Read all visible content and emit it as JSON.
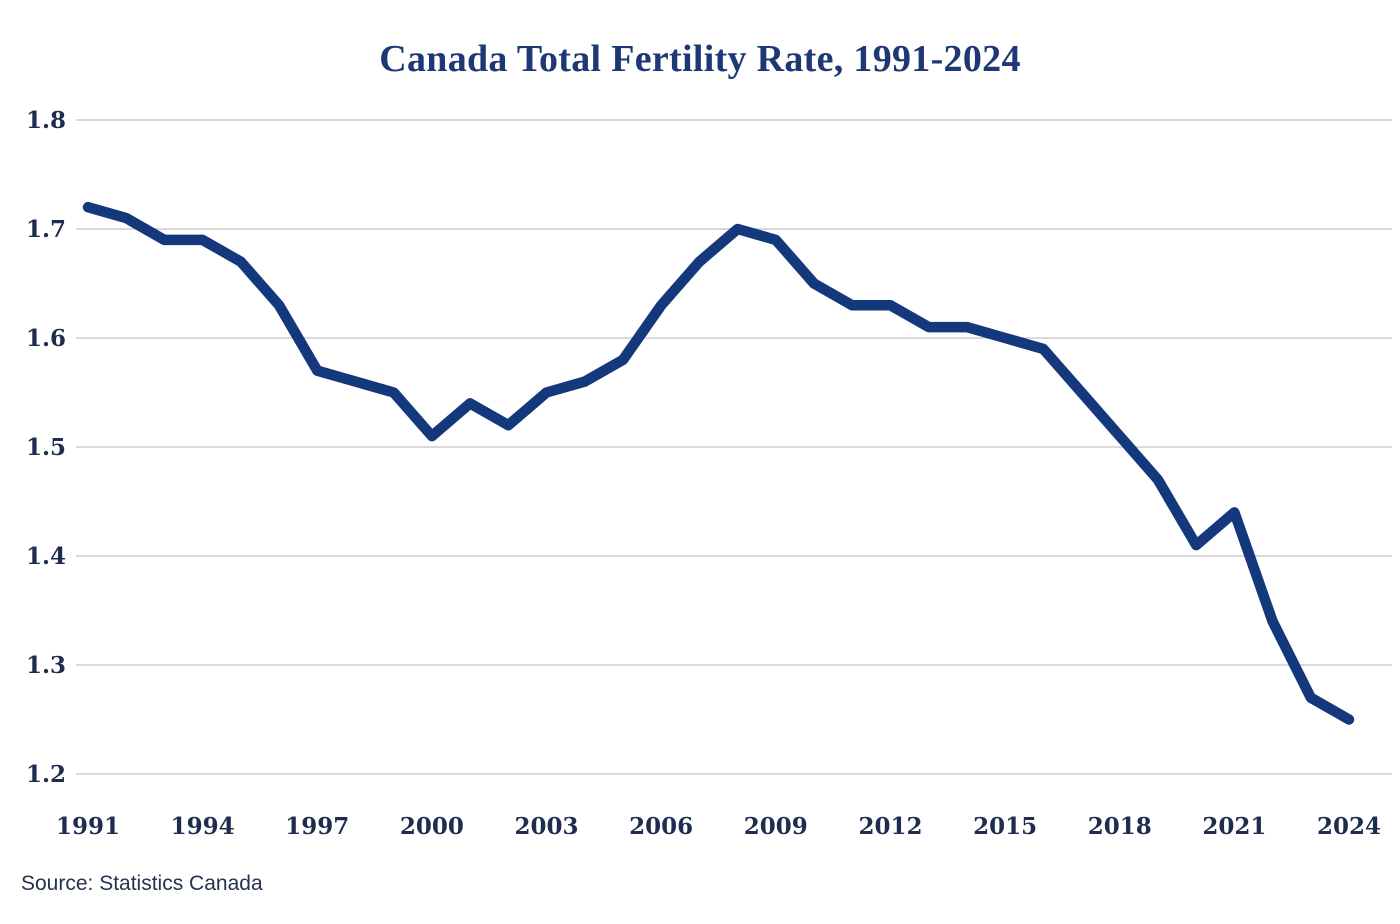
{
  "title": "Canada Total Fertility Rate, 1991-2024",
  "source": "Source: Statistics Canada",
  "colors": {
    "title_text": "#1e3876",
    "tick_text": "#1e2c4f",
    "source_text": "#25334f",
    "line": "#14387c",
    "grid": "#d9d9d9",
    "background": "#ffffff"
  },
  "chart_data": {
    "type": "line",
    "title": "Canada Total Fertility Rate, 1991-2024",
    "xlabel": "",
    "ylabel": "",
    "x": [
      1991,
      1992,
      1993,
      1994,
      1995,
      1996,
      1997,
      1998,
      1999,
      2000,
      2001,
      2002,
      2003,
      2004,
      2005,
      2006,
      2007,
      2008,
      2009,
      2010,
      2011,
      2012,
      2013,
      2014,
      2015,
      2016,
      2017,
      2018,
      2019,
      2020,
      2021,
      2022,
      2023,
      2024
    ],
    "series": [
      {
        "name": "Total fertility rate",
        "values": [
          1.72,
          1.71,
          1.69,
          1.69,
          1.67,
          1.63,
          1.57,
          1.56,
          1.55,
          1.51,
          1.54,
          1.52,
          1.55,
          1.56,
          1.58,
          1.63,
          1.67,
          1.7,
          1.69,
          1.65,
          1.63,
          1.63,
          1.61,
          1.61,
          1.6,
          1.59,
          1.55,
          1.51,
          1.47,
          1.41,
          1.44,
          1.34,
          1.27,
          1.25
        ]
      }
    ],
    "ylim": [
      1.2,
      1.8
    ],
    "xlim": [
      1991,
      2024
    ],
    "y_ticks": [
      "1.8",
      "1.7",
      "1.6",
      "1.5",
      "1.4",
      "1.3",
      "1.2"
    ],
    "x_ticks": [
      1991,
      1994,
      1997,
      2000,
      2003,
      2006,
      2009,
      2012,
      2015,
      2018,
      2021,
      2024
    ],
    "grid": "horizontal",
    "legend_position": "none",
    "line_width": 10.5,
    "line_color": "#14387c",
    "grid_color": "#d9d9d9"
  }
}
